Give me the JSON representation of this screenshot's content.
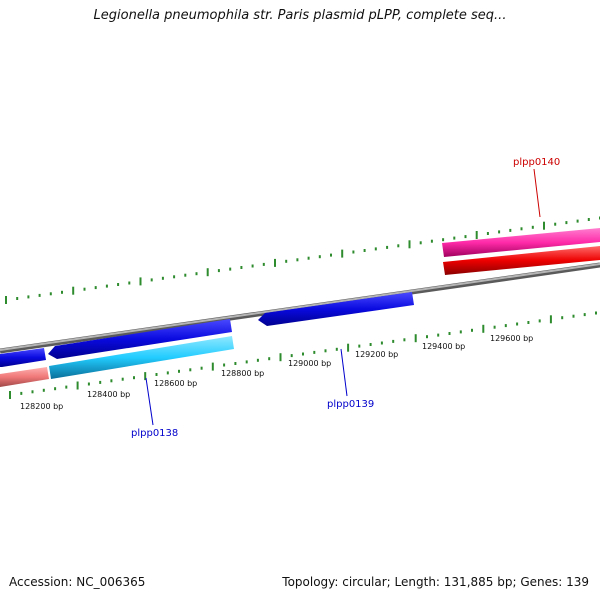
{
  "title": "Legionella pneumophila str. Paris plasmid pLPP, complete seq...",
  "footer": {
    "accession": "Accession: NC_006365",
    "summary": "Topology: circular; Length: 131,885 bp; Genes: 139"
  },
  "scale_labels": [
    "128200 bp",
    "128400 bp",
    "128600 bp",
    "128800 bp",
    "129000 bp",
    "129200 bp",
    "129400 bp",
    "129600 bp"
  ],
  "genes": [
    {
      "name": "plpp0138",
      "color": "#0000cc"
    },
    {
      "name": "plpp0139",
      "color": "#0000cc"
    },
    {
      "name": "plpp0140",
      "color": "#cc0000"
    }
  ],
  "colors": {
    "backbone": "#8a8a8a",
    "tick": "#2e8b2e",
    "forward_gene": "#1010e0",
    "cyan_feature": "#22ccff",
    "pink_feature": "#ff2aa8",
    "red_feature": "#ee0000",
    "salmon_feature": "#f07878"
  }
}
